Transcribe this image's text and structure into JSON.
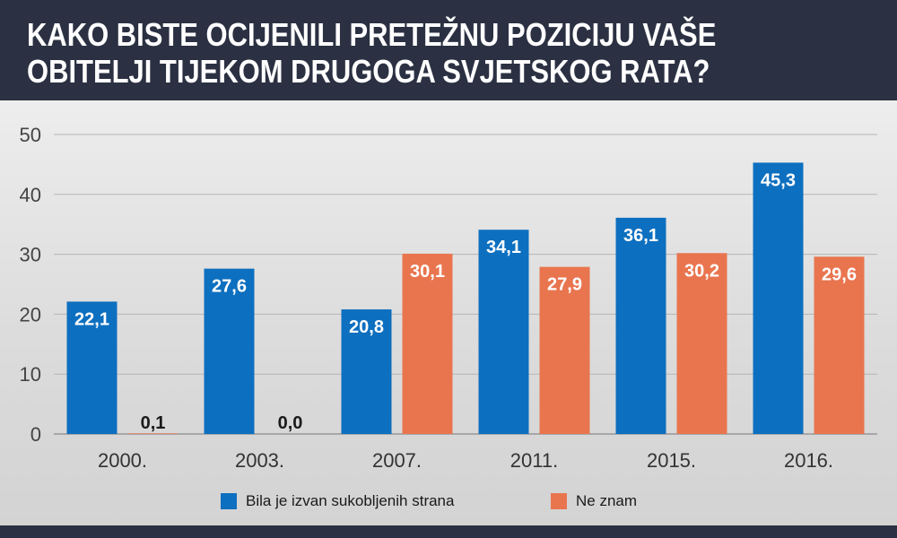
{
  "title_lines": [
    "KAKO BISTE OCIJENILI PRETEŽNU POZICIJU VAŠE",
    "OBITELJI TIJEKOM DRUGOGA SVJETSKOG RATA?"
  ],
  "colors": {
    "series_0": "#0d6fbf",
    "series_1": "#e9754f",
    "header": "#2b3142"
  },
  "chart_data": {
    "type": "bar",
    "categories": [
      "2000.",
      "2003.",
      "2007.",
      "2011.",
      "2015.",
      "2016."
    ],
    "series": [
      {
        "name": "Bila je izvan sukobljenih strana",
        "values": [
          22.1,
          27.6,
          20.8,
          34.1,
          36.1,
          45.3
        ],
        "labels": [
          "22,1",
          "27,6",
          "20,8",
          "34,1",
          "36,1",
          "45,3"
        ]
      },
      {
        "name": "Ne znam",
        "values": [
          0.1,
          0.0,
          30.1,
          27.9,
          30.2,
          29.6
        ],
        "labels": [
          "0,1",
          "0,0",
          "30,1",
          "27,9",
          "30,2",
          "29,6"
        ]
      }
    ],
    "ylim": [
      0,
      50
    ],
    "yticks": [
      "0",
      "10",
      "20",
      "30",
      "40",
      "50"
    ],
    "grid": true,
    "legend": "bottom"
  }
}
